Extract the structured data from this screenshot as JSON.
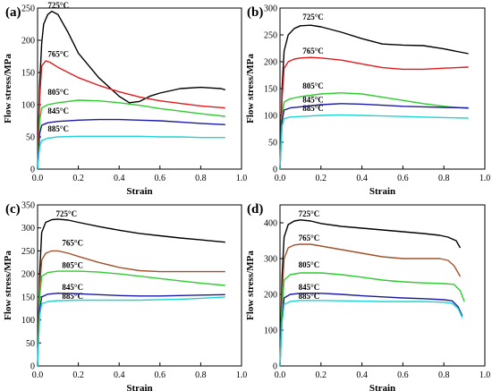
{
  "figure": {
    "background": "#ffffff"
  },
  "colors": {
    "725": "#000000",
    "765": "#e31a1c",
    "805": "#2ecc2e",
    "845": "#1a1aa6",
    "885": "#22d3d3"
  },
  "chart_data": [
    {
      "panel_label": "(a)",
      "type": "line",
      "xlabel": "Strain",
      "ylabel": "Flow stress/MPa",
      "xlim": [
        0,
        1.0
      ],
      "ylim": [
        0,
        250
      ],
      "xticks": [
        "0.0",
        "0.2",
        "0.4",
        "0.6",
        "0.8",
        "1.0"
      ],
      "yticks": [
        "0",
        "50",
        "100",
        "150",
        "200",
        "250"
      ],
      "grid": false,
      "series": [
        {
          "name": "725°C",
          "color": "#000000",
          "label_at": [
            0.05,
            250
          ],
          "x": [
            0,
            0.01,
            0.02,
            0.03,
            0.05,
            0.07,
            0.1,
            0.15,
            0.2,
            0.3,
            0.4,
            0.45,
            0.5,
            0.55,
            0.6,
            0.7,
            0.8,
            0.85,
            0.9,
            0.92
          ],
          "y": [
            0,
            130,
            195,
            225,
            240,
            245,
            240,
            212,
            180,
            142,
            113,
            103,
            105,
            113,
            118,
            125,
            127,
            126,
            125,
            123
          ]
        },
        {
          "name": "765°C",
          "color": "#e31a1c",
          "label_at": [
            0.05,
            174
          ],
          "x": [
            0,
            0.01,
            0.02,
            0.04,
            0.06,
            0.1,
            0.2,
            0.3,
            0.4,
            0.5,
            0.6,
            0.7,
            0.8,
            0.92
          ],
          "y": [
            0,
            110,
            160,
            168,
            166,
            158,
            142,
            130,
            120,
            112,
            106,
            102,
            98,
            95
          ]
        },
        {
          "name": "805°C",
          "color": "#2ecc2e",
          "label_at": [
            0.05,
            115
          ],
          "x": [
            0,
            0.01,
            0.02,
            0.05,
            0.1,
            0.2,
            0.3,
            0.4,
            0.5,
            0.6,
            0.7,
            0.8,
            0.92
          ],
          "y": [
            0,
            75,
            95,
            100,
            103,
            107,
            106,
            103,
            99,
            94,
            90,
            86,
            82
          ]
        },
        {
          "name": "845°C",
          "color": "#1a1aa6",
          "label_at": [
            0.05,
            86
          ],
          "x": [
            0,
            0.01,
            0.02,
            0.05,
            0.1,
            0.2,
            0.3,
            0.4,
            0.5,
            0.6,
            0.7,
            0.8,
            0.92
          ],
          "y": [
            0,
            55,
            68,
            72,
            74,
            76,
            77,
            77,
            76,
            75,
            73,
            71,
            69
          ]
        },
        {
          "name": "885°C",
          "color": "#22d3d3",
          "label_at": [
            0.05,
            58
          ],
          "x": [
            0,
            0.01,
            0.02,
            0.05,
            0.1,
            0.2,
            0.3,
            0.4,
            0.5,
            0.6,
            0.7,
            0.8,
            0.92
          ],
          "y": [
            0,
            35,
            44,
            48,
            50,
            51,
            51,
            51,
            51,
            50,
            50,
            49,
            49
          ]
        }
      ]
    },
    {
      "panel_label": "(b)",
      "type": "line",
      "xlabel": "Strain",
      "ylabel": "Flow stress/MPa",
      "xlim": [
        0,
        1.0
      ],
      "ylim": [
        0,
        300
      ],
      "xticks": [
        "0.0",
        "0.2",
        "0.4",
        "0.6",
        "0.8",
        "1.0"
      ],
      "yticks": [
        "0",
        "50",
        "100",
        "150",
        "200",
        "250",
        "300"
      ],
      "grid": false,
      "series": [
        {
          "name": "725°C",
          "color": "#000000",
          "label_at": [
            0.11,
            278
          ],
          "x": [
            0,
            0.01,
            0.02,
            0.04,
            0.07,
            0.1,
            0.15,
            0.2,
            0.3,
            0.4,
            0.5,
            0.6,
            0.7,
            0.8,
            0.92
          ],
          "y": [
            0,
            150,
            220,
            250,
            262,
            267,
            268,
            265,
            255,
            243,
            233,
            231,
            230,
            224,
            215
          ]
        },
        {
          "name": "765°C",
          "color": "#e31a1c",
          "label_at": [
            0.11,
            215
          ],
          "x": [
            0,
            0.01,
            0.02,
            0.04,
            0.07,
            0.1,
            0.15,
            0.2,
            0.3,
            0.4,
            0.5,
            0.6,
            0.7,
            0.8,
            0.92
          ],
          "y": [
            0,
            130,
            188,
            200,
            205,
            207,
            208,
            207,
            203,
            196,
            189,
            186,
            186,
            188,
            190
          ]
        },
        {
          "name": "805°C",
          "color": "#2ecc2e",
          "label_at": [
            0.11,
            150
          ],
          "x": [
            0,
            0.01,
            0.02,
            0.05,
            0.1,
            0.2,
            0.3,
            0.4,
            0.5,
            0.6,
            0.7,
            0.8,
            0.92
          ],
          "y": [
            0,
            100,
            125,
            131,
            135,
            140,
            142,
            140,
            134,
            128,
            122,
            117,
            113
          ]
        },
        {
          "name": "845°C",
          "color": "#1a1aa6",
          "label_at": [
            0.11,
            124
          ],
          "x": [
            0,
            0.01,
            0.02,
            0.05,
            0.1,
            0.2,
            0.3,
            0.4,
            0.5,
            0.6,
            0.7,
            0.8,
            0.92
          ],
          "y": [
            0,
            90,
            110,
            114,
            116,
            120,
            122,
            121,
            119,
            117,
            116,
            115,
            114
          ]
        },
        {
          "name": "885°C",
          "color": "#22d3d3",
          "label_at": [
            0.11,
            108
          ],
          "x": [
            0,
            0.01,
            0.02,
            0.05,
            0.1,
            0.2,
            0.3,
            0.4,
            0.5,
            0.6,
            0.7,
            0.8,
            0.92
          ],
          "y": [
            0,
            80,
            94,
            97,
            98,
            100,
            101,
            100,
            99,
            98,
            97,
            96,
            95
          ]
        }
      ]
    },
    {
      "panel_label": "(c)",
      "type": "line",
      "xlabel": "Strain",
      "ylabel": "Flow stress/MPa",
      "xlim": [
        0,
        1.0
      ],
      "ylim": [
        0,
        350
      ],
      "xticks": [
        "0.0",
        "0.2",
        "0.4",
        "0.6",
        "0.8",
        "1.0"
      ],
      "yticks": [
        "0",
        "50",
        "100",
        "150",
        "200",
        "250",
        "300",
        "350"
      ],
      "grid": false,
      "series": [
        {
          "name": "725°C",
          "color": "#000000",
          "label_at": [
            0.09,
            325
          ],
          "x": [
            0,
            0.01,
            0.02,
            0.04,
            0.07,
            0.1,
            0.15,
            0.2,
            0.3,
            0.4,
            0.5,
            0.6,
            0.7,
            0.8,
            0.92
          ],
          "y": [
            0,
            200,
            290,
            312,
            318,
            319,
            317,
            312,
            303,
            295,
            288,
            283,
            278,
            274,
            269
          ]
        },
        {
          "name": "765°C",
          "color": "#a0522d",
          "label_at": [
            0.12,
            262
          ],
          "x": [
            0,
            0.01,
            0.02,
            0.04,
            0.07,
            0.1,
            0.15,
            0.2,
            0.3,
            0.4,
            0.5,
            0.6,
            0.7,
            0.8,
            0.92
          ],
          "y": [
            0,
            170,
            230,
            245,
            250,
            250,
            245,
            238,
            225,
            214,
            207,
            205,
            205,
            205,
            205
          ]
        },
        {
          "name": "805°C",
          "color": "#2ecc2e",
          "label_at": [
            0.12,
            213
          ],
          "x": [
            0,
            0.01,
            0.02,
            0.05,
            0.1,
            0.2,
            0.3,
            0.4,
            0.5,
            0.6,
            0.7,
            0.8,
            0.92
          ],
          "y": [
            0,
            150,
            195,
            203,
            206,
            206,
            204,
            200,
            195,
            190,
            185,
            180,
            175
          ]
        },
        {
          "name": "845°C",
          "color": "#1a1aa6",
          "label_at": [
            0.12,
            165
          ],
          "x": [
            0,
            0.01,
            0.02,
            0.05,
            0.1,
            0.2,
            0.3,
            0.4,
            0.5,
            0.6,
            0.7,
            0.8,
            0.92
          ],
          "y": [
            0,
            120,
            150,
            156,
            158,
            157,
            155,
            153,
            152,
            152,
            153,
            154,
            155
          ]
        },
        {
          "name": "885°C",
          "color": "#22d3d3",
          "label_at": [
            0.12,
            146
          ],
          "x": [
            0,
            0.01,
            0.02,
            0.05,
            0.1,
            0.2,
            0.3,
            0.4,
            0.5,
            0.6,
            0.7,
            0.8,
            0.92
          ],
          "y": [
            0,
            110,
            135,
            140,
            142,
            143,
            143,
            143,
            143,
            144,
            145,
            147,
            150
          ]
        }
      ]
    },
    {
      "panel_label": "(d)",
      "type": "line",
      "xlabel": "Strain",
      "ylabel": "Flow stress/MPa",
      "xlim": [
        0,
        1.0
      ],
      "ylim": [
        0,
        450
      ],
      "xticks": [
        "0.0",
        "0.2",
        "0.4",
        "0.6",
        "0.8",
        "1.0"
      ],
      "yticks": [
        "0",
        "100",
        "200",
        "300",
        "400"
      ],
      "grid": false,
      "series": [
        {
          "name": "725°C",
          "color": "#000000",
          "label_at": [
            0.09,
            418
          ],
          "x": [
            0,
            0.01,
            0.02,
            0.04,
            0.07,
            0.1,
            0.15,
            0.2,
            0.3,
            0.4,
            0.5,
            0.6,
            0.7,
            0.78,
            0.82,
            0.86,
            0.88
          ],
          "y": [
            0,
            250,
            360,
            395,
            405,
            408,
            405,
            398,
            390,
            385,
            380,
            375,
            370,
            365,
            360,
            350,
            330
          ]
        },
        {
          "name": "765°C",
          "color": "#a0522d",
          "label_at": [
            0.09,
            350
          ],
          "x": [
            0,
            0.01,
            0.02,
            0.04,
            0.07,
            0.1,
            0.15,
            0.2,
            0.3,
            0.4,
            0.5,
            0.6,
            0.7,
            0.78,
            0.82,
            0.85,
            0.88
          ],
          "y": [
            0,
            200,
            300,
            330,
            338,
            340,
            340,
            335,
            325,
            315,
            305,
            300,
            300,
            300,
            295,
            280,
            250
          ]
        },
        {
          "name": "805°C",
          "color": "#2ecc2e",
          "label_at": [
            0.09,
            275
          ],
          "x": [
            0,
            0.01,
            0.02,
            0.05,
            0.1,
            0.2,
            0.3,
            0.4,
            0.5,
            0.6,
            0.7,
            0.8,
            0.85,
            0.88,
            0.9
          ],
          "y": [
            0,
            160,
            240,
            255,
            260,
            260,
            255,
            248,
            240,
            235,
            232,
            230,
            228,
            210,
            180
          ]
        },
        {
          "name": "845°C",
          "color": "#1a1aa6",
          "label_at": [
            0.09,
            213
          ],
          "x": [
            0,
            0.01,
            0.02,
            0.05,
            0.1,
            0.2,
            0.3,
            0.4,
            0.5,
            0.6,
            0.7,
            0.8,
            0.84,
            0.87,
            0.89
          ],
          "y": [
            0,
            130,
            190,
            200,
            203,
            203,
            200,
            196,
            193,
            190,
            188,
            185,
            182,
            165,
            140
          ]
        },
        {
          "name": "885°C",
          "color": "#22d3d3",
          "label_at": [
            0.09,
            188
          ],
          "x": [
            0,
            0.01,
            0.02,
            0.05,
            0.1,
            0.2,
            0.3,
            0.4,
            0.5,
            0.6,
            0.7,
            0.8,
            0.84,
            0.87,
            0.89
          ],
          "y": [
            0,
            120,
            172,
            180,
            183,
            183,
            182,
            181,
            180,
            180,
            180,
            178,
            175,
            160,
            135
          ]
        }
      ]
    }
  ]
}
